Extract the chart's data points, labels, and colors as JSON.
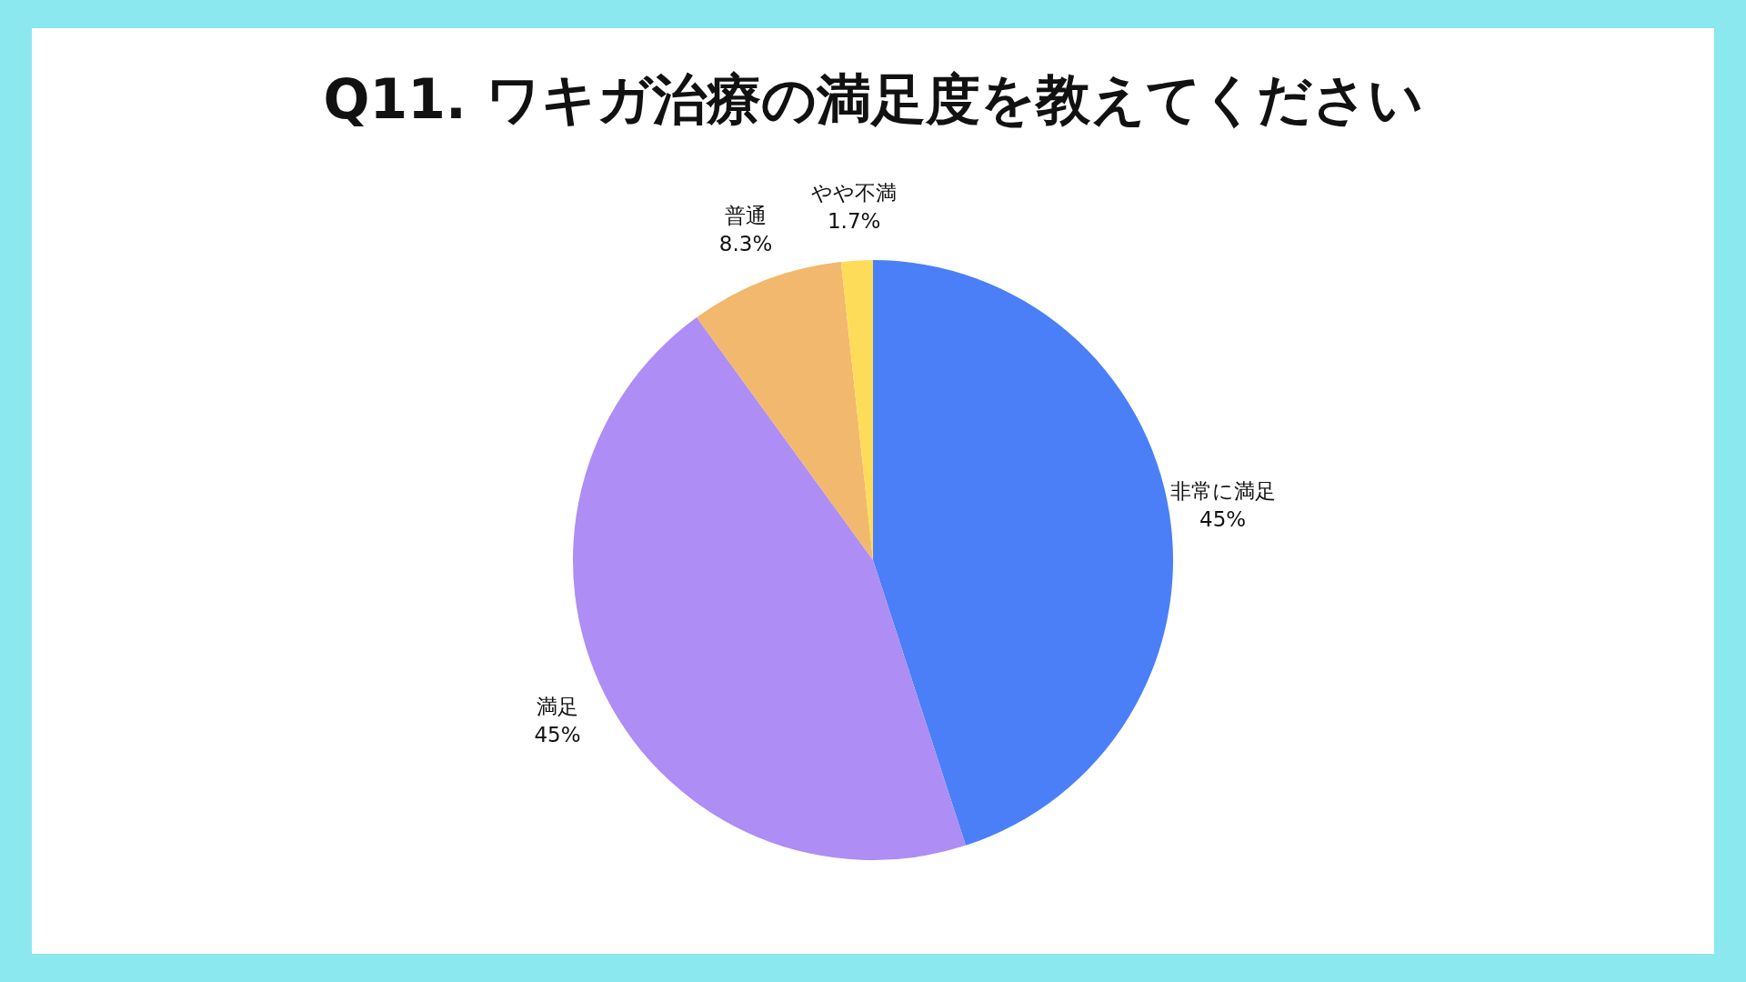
{
  "chart_data": {
    "type": "pie",
    "title": "Q11. ワキガ治療の満足度を教えてください",
    "categories": [
      "非常に満足",
      "満足",
      "普通",
      "やや不満"
    ],
    "values": [
      45,
      45,
      8.3,
      1.7
    ],
    "value_labels": [
      "45%",
      "45%",
      "8.3%",
      "1.7%"
    ],
    "colors": [
      "#4a7ff7",
      "#ae8df4",
      "#f2b86d",
      "#fddc5a"
    ]
  }
}
